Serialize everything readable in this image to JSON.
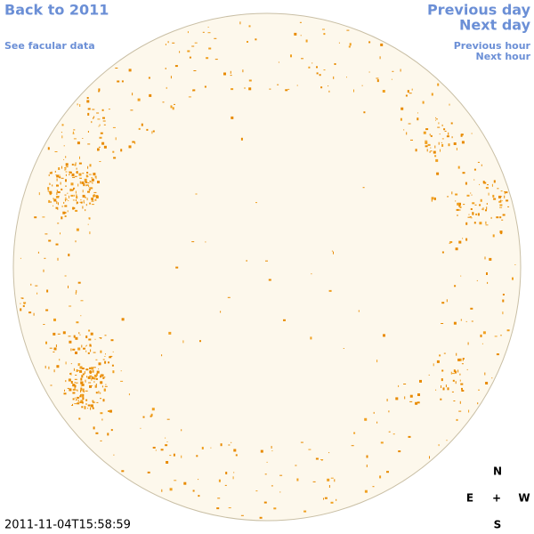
{
  "nav": {
    "back": "Back to 2011",
    "facular": "See facular data",
    "previous_day": "Previous day",
    "next_day": "Next day",
    "previous_hour": "Previous hour",
    "next_hour": "Next hour"
  },
  "timestamp": "2011-11-04T15:58:59",
  "compass": {
    "north": "N",
    "east": "E",
    "center": "+",
    "west": "W",
    "south": "S"
  }
}
